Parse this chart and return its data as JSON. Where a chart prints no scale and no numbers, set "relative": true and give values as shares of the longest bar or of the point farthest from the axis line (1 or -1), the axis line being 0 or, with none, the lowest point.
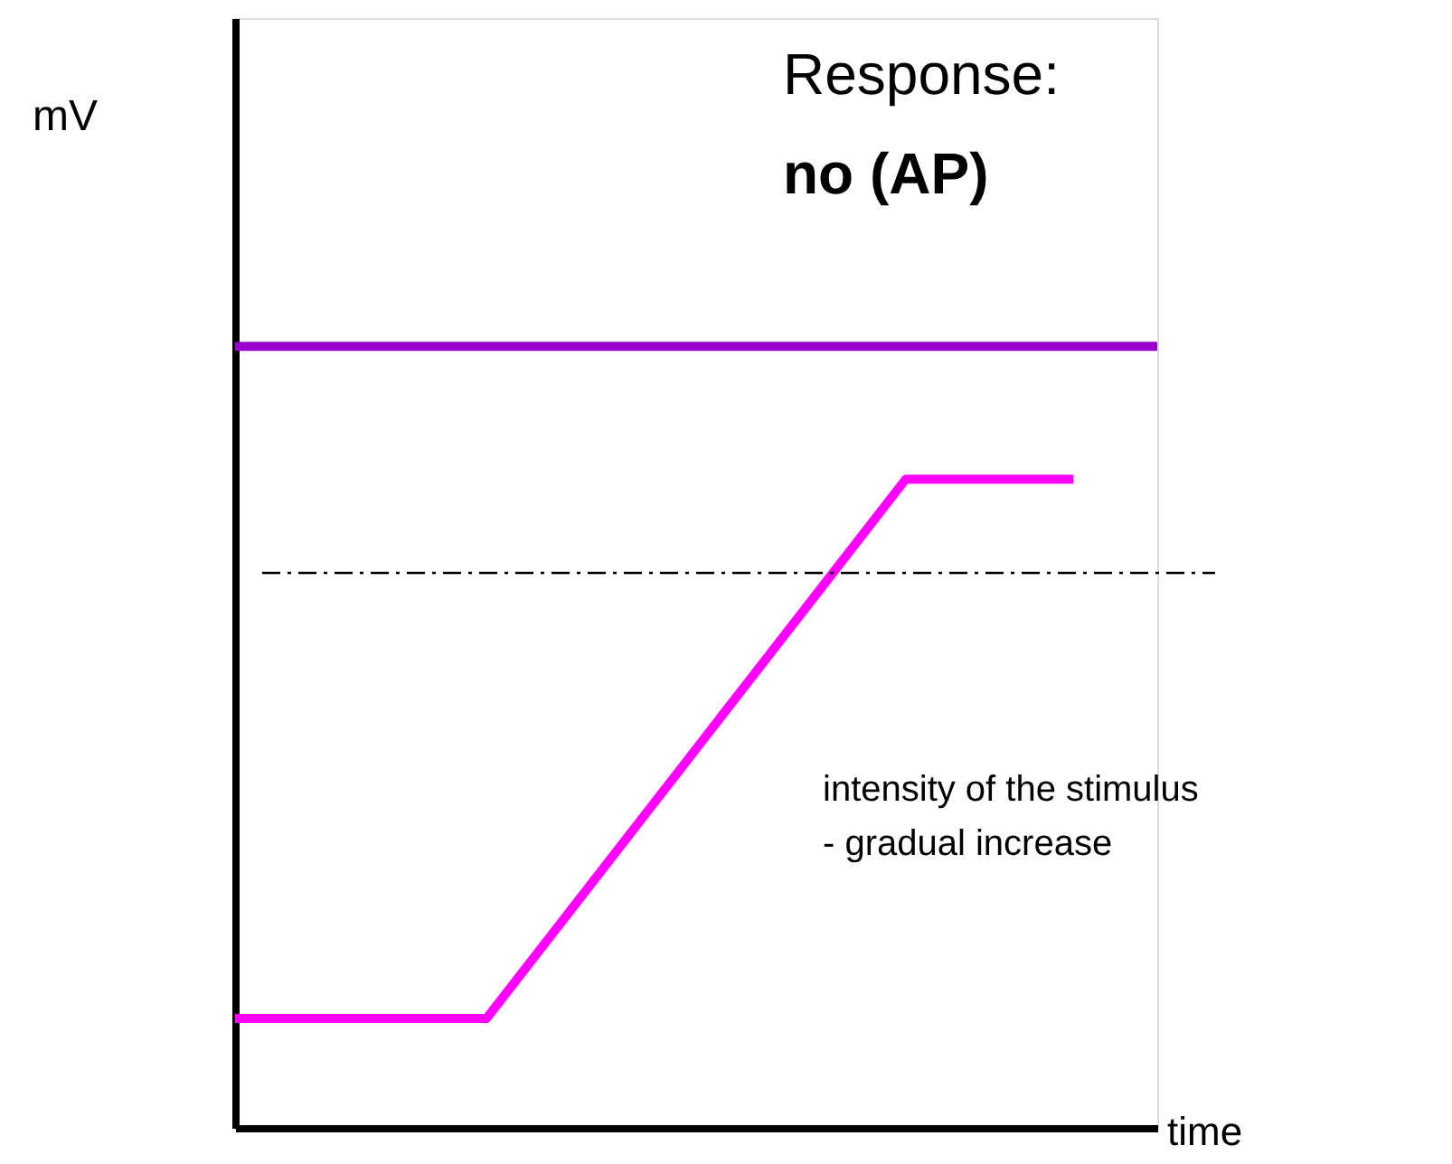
{
  "chart_data": {
    "type": "line",
    "title": "Response:",
    "subtitle": "no (AP)",
    "xlabel": "time",
    "annotations": [
      "mV",
      "intensity of the stimulus\n- gradual increase"
    ],
    "relative": true,
    "categories": [
      null,
      null,
      null,
      null,
      null,
      null,
      null,
      null,
      null,
      null,
      null,
      null
    ],
    "grid": false,
    "marker": "none",
    "line_style": "solid",
    "series": [
      {
        "color": "#9900cc",
        "values": [
          1,
          1,
          1,
          1,
          1,
          1,
          1,
          1,
          1,
          1,
          1,
          1
        ]
      },
      {
        "color": "#ff00ff",
        "values": [
          0.14,
          0.14,
          0.14,
          0.14,
          0.278,
          0.416,
          0.554,
          0.692,
          0.83,
          0.83,
          0.83,
          null
        ]
      }
    ],
    "ref_lines": [
      {
        "axis": "y",
        "value": 0.71,
        "color": "#000000",
        "line_style": "dashed"
      }
    ]
  }
}
